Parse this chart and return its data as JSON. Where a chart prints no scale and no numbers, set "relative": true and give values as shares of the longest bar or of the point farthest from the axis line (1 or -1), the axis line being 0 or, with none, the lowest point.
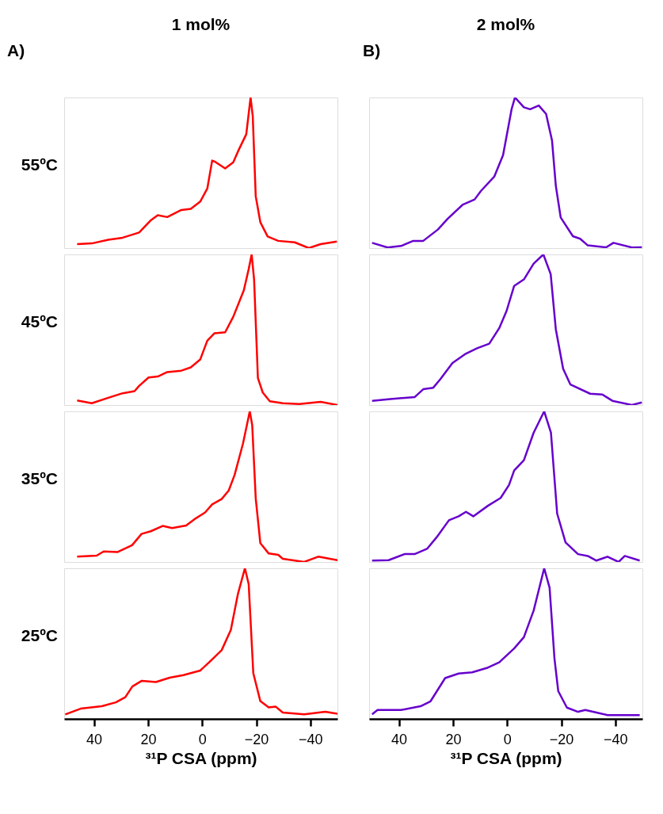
{
  "chart_data": [
    {
      "type": "line",
      "title": "1 mol%",
      "ylabel": "55ºC",
      "annotations": [
        "A)"
      ],
      "color": "#ff0000",
      "relative": true,
      "xlim": [
        51,
        -50
      ],
      "tick_labels": false,
      "x": [
        46.2,
        40.8,
        34.7,
        29.4,
        23.3,
        18.9,
        16.4,
        12.9,
        7.7,
        4.2,
        0.7,
        -1.9,
        -3.7,
        -4.5,
        -8.5,
        -11.5,
        -13.3,
        -16.3,
        -17.9,
        -18.7,
        -19.8,
        -21.5,
        -24.2,
        -28.1,
        -34.2,
        -39.4,
        -43.8,
        -49.8
      ],
      "values": [
        0.026,
        0.031,
        0.055,
        0.069,
        0.103,
        0.186,
        0.218,
        0.206,
        0.253,
        0.261,
        0.309,
        0.395,
        0.581,
        0.576,
        0.529,
        0.57,
        0.644,
        0.756,
        1,
        0.876,
        0.344,
        0.172,
        0.077,
        0.048,
        0.038,
        0,
        0.026,
        0.043
      ]
    },
    {
      "type": "line",
      "ylabel": "45ºC",
      "color": "#ff0000",
      "relative": true,
      "xlim": [
        51,
        -50
      ],
      "tick_labels": false,
      "x": [
        46.2,
        40.8,
        34.7,
        29.4,
        25.0,
        23.3,
        19.8,
        16.4,
        12.9,
        7.7,
        4.2,
        0.7,
        -1.9,
        -4.5,
        -8.5,
        -11.5,
        -15.4,
        -17.2,
        -18.3,
        -19.2,
        -20.6,
        -22.4,
        -25.0,
        -29.8,
        -35.9,
        -43.8,
        -50.0
      ],
      "values": [
        0.03,
        0.012,
        0.048,
        0.078,
        0.092,
        0.127,
        0.183,
        0.189,
        0.219,
        0.228,
        0.25,
        0.303,
        0.427,
        0.476,
        0.483,
        0.586,
        0.762,
        0.903,
        1,
        0.832,
        0.18,
        0.083,
        0.025,
        0.012,
        0.007,
        0.021,
        0
      ]
    },
    {
      "type": "line",
      "ylabel": "35ºC",
      "color": "#ff0000",
      "relative": true,
      "xlim": [
        51,
        -50
      ],
      "tick_labels": false,
      "x": [
        46.2,
        39.0,
        36.4,
        31.2,
        25.9,
        22.4,
        19.0,
        14.6,
        11.1,
        5.9,
        2.4,
        -1.1,
        -3.7,
        -7.2,
        -9.8,
        -12.0,
        -15.1,
        -17.6,
        -18.5,
        -19.8,
        -21.5,
        -24.6,
        -28.1,
        -29.8,
        -37.7,
        -42.9,
        -50.0
      ],
      "values": [
        0.035,
        0.042,
        0.07,
        0.066,
        0.111,
        0.186,
        0.204,
        0.239,
        0.225,
        0.242,
        0.289,
        0.329,
        0.382,
        0.418,
        0.474,
        0.578,
        0.787,
        1,
        0.909,
        0.422,
        0.125,
        0.056,
        0.047,
        0.021,
        0,
        0.035,
        0.012
      ]
    },
    {
      "type": "line",
      "ylabel": "25ºC",
      "xlabel": "³¹P CSA (ppm)",
      "color": "#ff0000",
      "relative": true,
      "xlim": [
        51,
        -50
      ],
      "xticks": [
        40,
        20,
        0,
        -20,
        -40
      ],
      "tick_labels": "x",
      "x": [
        50.6,
        44.9,
        37.1,
        31.9,
        28.4,
        25.8,
        22.3,
        17.1,
        12.0,
        6.9,
        0.7,
        -2.8,
        -7.2,
        -10.6,
        -13.2,
        -15.8,
        -17.2,
        -18.9,
        -21.5,
        -24.6,
        -27.2,
        -29.8,
        -37.7,
        -45.5,
        -50.0
      ],
      "values": [
        0.03,
        0.068,
        0.084,
        0.11,
        0.144,
        0.215,
        0.253,
        0.245,
        0.274,
        0.291,
        0.321,
        0.38,
        0.456,
        0.591,
        0.828,
        1,
        0.895,
        0.304,
        0.118,
        0.076,
        0.081,
        0.042,
        0.03,
        0.047,
        0.034
      ]
    },
    {
      "type": "line",
      "title": "2 mol%",
      "annotations": [
        "B)"
      ],
      "color": "#6600cc",
      "relative": true,
      "xlim": [
        51,
        -50
      ],
      "tick_labels": false,
      "x": [
        49.9,
        44.2,
        39.2,
        34.7,
        31.0,
        25.6,
        22.0,
        16.5,
        12.0,
        9.7,
        4.7,
        1.5,
        -1.7,
        -2.9,
        -6.2,
        -8.5,
        -11.7,
        -14.4,
        -16.6,
        -18.0,
        -19.8,
        -24.3,
        -27.0,
        -29.8,
        -36.6,
        -39.3,
        -46.1,
        -49.8
      ],
      "values": [
        0.035,
        0.004,
        0.014,
        0.048,
        0.048,
        0.123,
        0.194,
        0.287,
        0.323,
        0.379,
        0.476,
        0.617,
        0.926,
        1,
        0.935,
        0.922,
        0.947,
        0.891,
        0.714,
        0.414,
        0.203,
        0.079,
        0.062,
        0.018,
        0.005,
        0.035,
        0.004,
        0.005
      ]
    },
    {
      "type": "line",
      "color": "#6600cc",
      "relative": true,
      "xlim": [
        51,
        -50
      ],
      "tick_labels": false,
      "x": [
        49.9,
        43.2,
        34.2,
        31.0,
        27.3,
        24.7,
        20.2,
        15.6,
        11.1,
        6.6,
        2.9,
        0.2,
        -2.6,
        -6.2,
        -9.8,
        -13.4,
        -16.1,
        -18.0,
        -20.7,
        -23.4,
        -30.7,
        -35.2,
        -38.9,
        -46.1,
        -49.8
      ],
      "values": [
        0.028,
        0.04,
        0.052,
        0.105,
        0.115,
        0.171,
        0.279,
        0.337,
        0.377,
        0.407,
        0.511,
        0.625,
        0.791,
        0.834,
        0.939,
        1,
        0.869,
        0.503,
        0.241,
        0.136,
        0.075,
        0.07,
        0.028,
        0,
        0.017
      ]
    },
    {
      "type": "line",
      "color": "#6600cc",
      "relative": true,
      "xlim": [
        51,
        -50
      ],
      "tick_labels": false,
      "x": [
        49.9,
        43.8,
        37.9,
        34.2,
        29.6,
        26.0,
        21.5,
        17.9,
        15.2,
        12.5,
        7.1,
        2.4,
        -0.7,
        -2.6,
        -6.2,
        -9.8,
        -13.7,
        -16.2,
        -18.5,
        -21.6,
        -26.2,
        -29.8,
        -33.0,
        -37.1,
        -41.2,
        -43.5,
        -49.0
      ],
      "values": [
        0.009,
        0.012,
        0.052,
        0.052,
        0.087,
        0.165,
        0.277,
        0.303,
        0.333,
        0.303,
        0.373,
        0.425,
        0.511,
        0.607,
        0.676,
        0.858,
        1,
        0.858,
        0.321,
        0.13,
        0.052,
        0.04,
        0.009,
        0.035,
        0,
        0.04,
        0.009
      ]
    },
    {
      "type": "line",
      "xlabel": "³¹P CSA (ppm)",
      "color": "#6600cc",
      "relative": true,
      "xlim": [
        51,
        -50
      ],
      "xticks": [
        40,
        20,
        0,
        -20,
        -40
      ],
      "tick_labels": "x",
      "x": [
        49.9,
        47.9,
        39.2,
        32.0,
        28.3,
        22.9,
        17.9,
        12.9,
        7.5,
        2.9,
        -2.6,
        -6.2,
        -9.8,
        -13.7,
        -15.7,
        -17.5,
        -18.9,
        -22.1,
        -26.2,
        -28.9,
        -34.3,
        -37.1,
        -49.0
      ],
      "values": [
        0.03,
        0.059,
        0.059,
        0.084,
        0.117,
        0.271,
        0.301,
        0.309,
        0.338,
        0.376,
        0.468,
        0.543,
        0.719,
        1,
        0.87,
        0.401,
        0.184,
        0.075,
        0.047,
        0.059,
        0.037,
        0.025,
        0.025
      ]
    }
  ]
}
